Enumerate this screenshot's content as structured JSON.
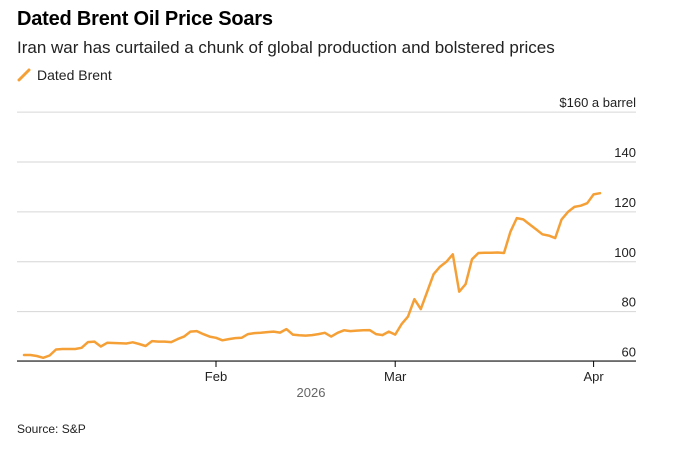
{
  "title": "Dated Brent Oil Price Soars",
  "subtitle": "Iran war has curtailed a chunk of global production and bolstered prices",
  "source": "Source: S&P",
  "colors": {
    "series": "#F5A037",
    "grid": "#D6D6D6",
    "axis": "#000000",
    "text": "#222222",
    "year_label": "#666666"
  },
  "chart_data": {
    "type": "line",
    "title": "Dated Brent Oil Price Soars",
    "subtitle": "Iran war has curtailed a chunk of global production and bolstered prices",
    "xlabel": "2026",
    "ylabel": "$160 a barrel",
    "ylim": [
      56,
      160
    ],
    "y_ticks": [
      160,
      140,
      120,
      100,
      80,
      60
    ],
    "y_tick_labels": [
      "$160 a barrel",
      "140",
      "120",
      "100",
      "80",
      "60"
    ],
    "x_ticks": [
      {
        "label": "Feb",
        "day": 32
      },
      {
        "label": "Mar",
        "day": 60
      },
      {
        "label": "Apr",
        "day": 91
      }
    ],
    "x_year_label": "2026",
    "xlim": [
      2,
      92
    ],
    "legend": [
      {
        "name": "Dated Brent",
        "position": "top-left"
      }
    ],
    "series": [
      {
        "name": "Dated Brent",
        "x": [
          2,
          3,
          4,
          5,
          6,
          7,
          8,
          9,
          10,
          11,
          12,
          13,
          14,
          15,
          16,
          17,
          18,
          19,
          20,
          21,
          22,
          23,
          24,
          25,
          26,
          27,
          28,
          29,
          30,
          31,
          32,
          33,
          34,
          35,
          36,
          37,
          38,
          39,
          40,
          41,
          42,
          43,
          44,
          45,
          46,
          47,
          48,
          49,
          50,
          51,
          52,
          53,
          54,
          55,
          56,
          57,
          58,
          59,
          60,
          61,
          62,
          63,
          64,
          65,
          66,
          67,
          68,
          69,
          70,
          71,
          72,
          73,
          74,
          75,
          76,
          77,
          78,
          79,
          80,
          81,
          82,
          83,
          84,
          85,
          86,
          87,
          88,
          89,
          90,
          91,
          92
        ],
        "values": [
          62.6,
          62.6,
          62.2,
          61.5,
          62.4,
          64.8,
          65.0,
          65.0,
          65.0,
          65.5,
          67.8,
          68.0,
          66.0,
          67.5,
          67.4,
          67.3,
          67.2,
          67.7,
          67.0,
          66.2,
          68.2,
          68.0,
          68.0,
          67.8,
          69.0,
          70.0,
          72.0,
          72.2,
          71.0,
          70.0,
          69.5,
          68.5,
          69.0,
          69.4,
          69.5,
          71.0,
          71.4,
          71.5,
          71.8,
          72.0,
          71.6,
          73.0,
          70.8,
          70.5,
          70.4,
          70.6,
          71.0,
          71.5,
          70.0,
          71.5,
          72.5,
          72.2,
          72.4,
          72.5,
          72.6,
          71.0,
          70.6,
          72.0,
          70.8,
          75.0,
          78.0,
          85.0,
          81.0,
          88.0,
          95.0,
          98.0,
          100.0,
          103.0,
          88.0,
          91.0,
          101.0,
          103.5,
          103.6,
          103.6,
          103.7,
          103.5,
          112.0,
          117.5,
          117.0,
          115.0,
          113.0,
          111.0,
          110.5,
          109.5,
          117.0,
          120.0,
          122.0,
          122.5,
          123.5,
          127.0,
          127.5
        ]
      }
    ]
  }
}
